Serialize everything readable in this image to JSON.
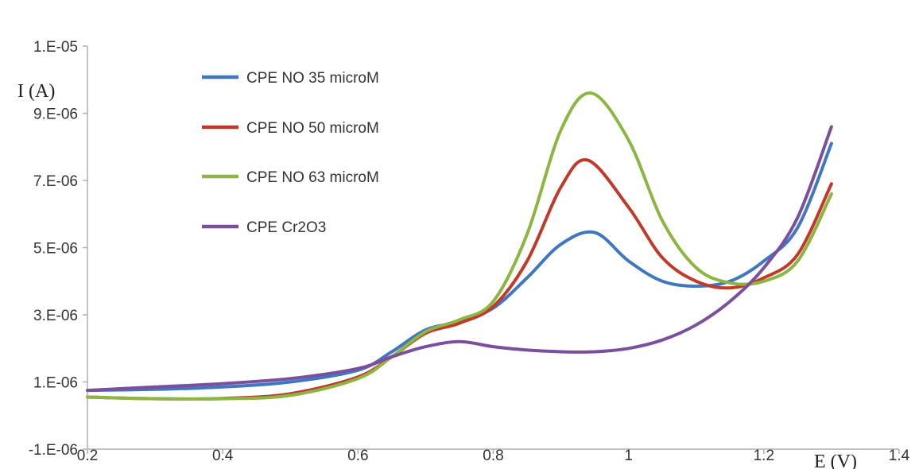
{
  "chart_data": {
    "type": "line",
    "title": "",
    "xlabel": "E (V)",
    "ylabel": "I (A)",
    "xlim": [
      0.2,
      1.4
    ],
    "ylim": [
      -1e-06,
      1.1e-05
    ],
    "x_ticks": [
      0.2,
      0.4,
      0.6,
      0.8,
      1.0,
      1.2,
      1.4
    ],
    "x_tick_labels": [
      "0.2",
      "0.4",
      "0.6",
      "0.8",
      "1",
      "1.2",
      "1.4"
    ],
    "y_ticks": [
      -1e-06,
      1e-06,
      3e-06,
      5e-06,
      7e-06,
      9e-06,
      1.1e-05
    ],
    "y_tick_labels": [
      "-1.E-06",
      "1.E-06",
      "3.E-06",
      "5.E-06",
      "7.E-06",
      "9.E-06",
      "1.E-05"
    ],
    "grid": false,
    "legend_position": "top-left",
    "series": [
      {
        "name": "CPE NO 35 microM",
        "color": "#3f78c0",
        "points": [
          [
            0.2,
            7.5e-07
          ],
          [
            0.3,
            7.8e-07
          ],
          [
            0.4,
            8.5e-07
          ],
          [
            0.5,
            1e-06
          ],
          [
            0.6,
            1.35e-06
          ],
          [
            0.65,
            1.9e-06
          ],
          [
            0.7,
            2.55e-06
          ],
          [
            0.75,
            2.8e-06
          ],
          [
            0.8,
            3.2e-06
          ],
          [
            0.85,
            4.1e-06
          ],
          [
            0.9,
            5.1e-06
          ],
          [
            0.95,
            5.45e-06
          ],
          [
            1.0,
            4.6e-06
          ],
          [
            1.05,
            4e-06
          ],
          [
            1.1,
            3.85e-06
          ],
          [
            1.15,
            4e-06
          ],
          [
            1.2,
            4.6e-06
          ],
          [
            1.25,
            5.6e-06
          ],
          [
            1.3,
            8.1e-06
          ]
        ]
      },
      {
        "name": "CPE NO 50 microM",
        "color": "#c0392b",
        "points": [
          [
            0.2,
            5.5e-07
          ],
          [
            0.3,
            5e-07
          ],
          [
            0.4,
            5.1e-07
          ],
          [
            0.5,
            6.5e-07
          ],
          [
            0.6,
            1.15e-06
          ],
          [
            0.65,
            1.75e-06
          ],
          [
            0.7,
            2.45e-06
          ],
          [
            0.75,
            2.75e-06
          ],
          [
            0.8,
            3.25e-06
          ],
          [
            0.85,
            4.6e-06
          ],
          [
            0.9,
            6.8e-06
          ],
          [
            0.94,
            7.6e-06
          ],
          [
            1.0,
            6.2e-06
          ],
          [
            1.05,
            4.7e-06
          ],
          [
            1.1,
            4e-06
          ],
          [
            1.15,
            3.8e-06
          ],
          [
            1.2,
            4.1e-06
          ],
          [
            1.25,
            4.8e-06
          ],
          [
            1.3,
            6.9e-06
          ]
        ]
      },
      {
        "name": "CPE NO 63 microM",
        "color": "#8db542",
        "points": [
          [
            0.2,
            5.5e-07
          ],
          [
            0.3,
            5e-07
          ],
          [
            0.4,
            5e-07
          ],
          [
            0.5,
            6e-07
          ],
          [
            0.6,
            1.1e-06
          ],
          [
            0.65,
            1.75e-06
          ],
          [
            0.7,
            2.5e-06
          ],
          [
            0.75,
            2.85e-06
          ],
          [
            0.8,
            3.4e-06
          ],
          [
            0.85,
            5.4e-06
          ],
          [
            0.9,
            8.5e-06
          ],
          [
            0.945,
            9.6e-06
          ],
          [
            1.0,
            8.2e-06
          ],
          [
            1.05,
            5.8e-06
          ],
          [
            1.1,
            4.4e-06
          ],
          [
            1.15,
            3.95e-06
          ],
          [
            1.2,
            4e-06
          ],
          [
            1.25,
            4.6e-06
          ],
          [
            1.3,
            6.6e-06
          ]
        ]
      },
      {
        "name": "CPE Cr2O3",
        "color": "#7a4f9e",
        "points": [
          [
            0.2,
            7.5e-07
          ],
          [
            0.3,
            8.5e-07
          ],
          [
            0.4,
            9.5e-07
          ],
          [
            0.5,
            1.1e-06
          ],
          [
            0.6,
            1.4e-06
          ],
          [
            0.65,
            1.75e-06
          ],
          [
            0.7,
            2.05e-06
          ],
          [
            0.75,
            2.2e-06
          ],
          [
            0.8,
            2.05e-06
          ],
          [
            0.85,
            1.95e-06
          ],
          [
            0.9,
            1.9e-06
          ],
          [
            0.95,
            1.9e-06
          ],
          [
            1.0,
            2e-06
          ],
          [
            1.05,
            2.25e-06
          ],
          [
            1.1,
            2.7e-06
          ],
          [
            1.15,
            3.4e-06
          ],
          [
            1.2,
            4.4e-06
          ],
          [
            1.25,
            5.9e-06
          ],
          [
            1.3,
            8.6e-06
          ]
        ]
      }
    ]
  }
}
